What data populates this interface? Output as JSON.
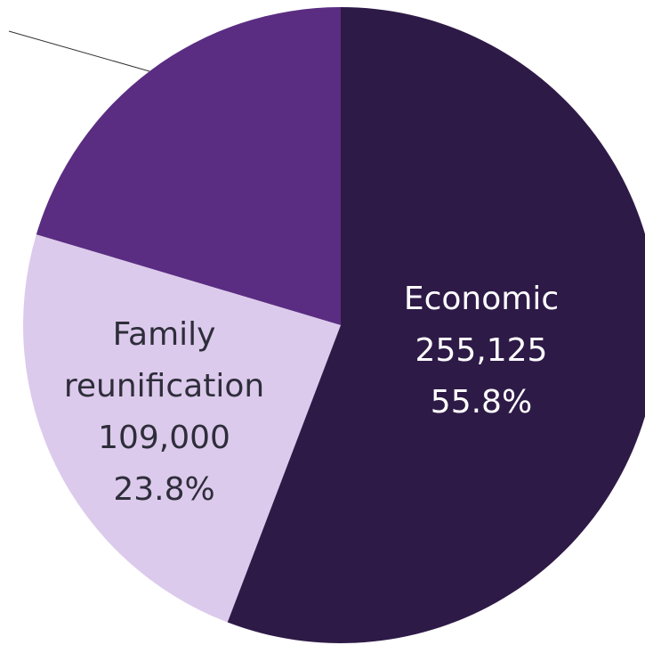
{
  "chart_data": {
    "type": "pie",
    "categories": [
      "Economic",
      "Family reunification",
      null
    ],
    "values": [
      55.8,
      23.8,
      20.4
    ],
    "value_labels": [
      "55.8%",
      "23.8%",
      null
    ],
    "counts": [
      255125,
      109000,
      null
    ],
    "count_labels": [
      "255,125",
      "109,000",
      null
    ],
    "colors": [
      "#2e1a47",
      "#dccaec",
      "#5a2d82"
    ]
  }
}
